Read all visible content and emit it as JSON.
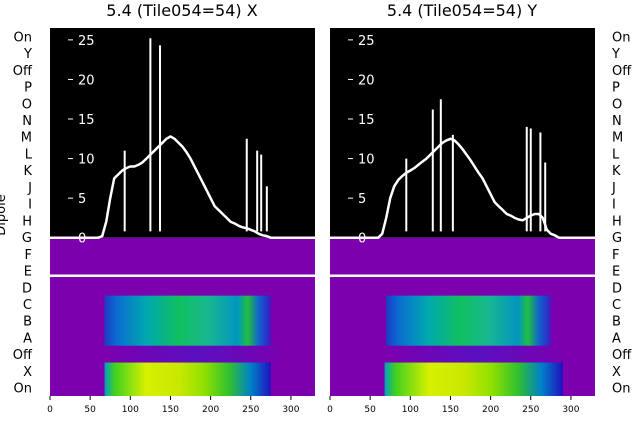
{
  "chart_data": [
    {
      "type": "line",
      "title": "5.4 (Tile054=54) X",
      "ylabel": "Dipole",
      "xlim": [
        0,
        330
      ],
      "ylim": [
        -20,
        26.5
      ],
      "x_ticks": [
        0,
        50,
        100,
        150,
        200,
        250,
        300
      ],
      "y_ticks": [
        0,
        5,
        10,
        15,
        20,
        25
      ],
      "row_labels": [
        "On",
        "Y",
        "Off",
        "P",
        "O",
        "N",
        "M",
        "L",
        "K",
        "J",
        "I",
        "H",
        "G",
        "F",
        "E",
        "D",
        "C",
        "B",
        "A",
        "Off",
        "X",
        "On"
      ],
      "series": [
        {
          "name": "",
          "color": "#ffffff",
          "x": [
            0,
            60,
            65,
            70,
            75,
            80,
            85,
            90,
            95,
            100,
            105,
            110,
            115,
            120,
            125,
            130,
            135,
            140,
            145,
            150,
            155,
            160,
            165,
            170,
            175,
            180,
            185,
            190,
            195,
            200,
            205,
            210,
            215,
            220,
            225,
            230,
            235,
            240,
            245,
            250,
            255,
            260,
            265,
            270,
            275,
            280,
            285,
            330
          ],
          "y": [
            0,
            0,
            0.2,
            2,
            5,
            7.5,
            8,
            8.5,
            8.8,
            9,
            9,
            9.2,
            9.5,
            10,
            10.5,
            11,
            11.5,
            12,
            12.5,
            12.8,
            12.5,
            12,
            11.5,
            10.8,
            10,
            9,
            8,
            7,
            6,
            5,
            4,
            3.5,
            3,
            2.5,
            2,
            1.8,
            1.5,
            1.3,
            1.2,
            1,
            0.8,
            0.5,
            0.3,
            0.2,
            0,
            0,
            0,
            0
          ]
        }
      ],
      "spikes": [
        {
          "x": 93,
          "y": 11
        },
        {
          "x": 125,
          "y": 25.2
        },
        {
          "x": 137,
          "y": 24.3
        },
        {
          "x": 245,
          "y": 12.5
        },
        {
          "x": 258,
          "y": 11
        },
        {
          "x": 263,
          "y": 10.5
        },
        {
          "x": 270,
          "y": 6.5
        }
      ],
      "hline": {
        "y": -4.8,
        "color": "#ffffff"
      },
      "heatmap_rows": [
        {
          "row_from": 16,
          "row_to": 19,
          "x_start": 68,
          "x_end": 275,
          "palette": "blue-green"
        },
        {
          "row_from": 19,
          "row_to": 20,
          "x_start": 75,
          "x_end": 290,
          "palette": "purple-band"
        },
        {
          "row_from": 20,
          "row_to": 22,
          "x_start": 68,
          "x_end": 275,
          "palette": "yellow-green"
        }
      ]
    },
    {
      "type": "line",
      "title": "5.4 (Tile054=54) Y",
      "xlim": [
        0,
        330
      ],
      "ylim": [
        -20,
        26.5
      ],
      "x_ticks": [
        0,
        50,
        100,
        150,
        200,
        250,
        300
      ],
      "y_ticks": [
        0,
        5,
        10,
        15,
        20,
        25
      ],
      "row_labels": [
        "On",
        "Y",
        "Off",
        "P",
        "O",
        "N",
        "M",
        "L",
        "K",
        "J",
        "I",
        "H",
        "G",
        "F",
        "E",
        "D",
        "C",
        "B",
        "A",
        "Off",
        "X",
        "On"
      ],
      "series": [
        {
          "name": "",
          "color": "#ffffff",
          "x": [
            0,
            60,
            65,
            70,
            75,
            80,
            85,
            90,
            95,
            100,
            105,
            110,
            115,
            120,
            125,
            130,
            135,
            140,
            145,
            150,
            155,
            160,
            165,
            170,
            175,
            180,
            185,
            190,
            195,
            200,
            205,
            210,
            215,
            220,
            225,
            230,
            235,
            240,
            245,
            250,
            255,
            260,
            265,
            270,
            275,
            280,
            285,
            330
          ],
          "y": [
            0,
            0,
            0.5,
            2.5,
            5,
            6.5,
            7.3,
            7.8,
            8.2,
            8.5,
            8.8,
            9.2,
            9.6,
            10,
            10.5,
            11,
            11.5,
            12,
            12.3,
            12.5,
            12.3,
            11.8,
            11.2,
            10.5,
            9.8,
            9,
            8.2,
            7.5,
            6.5,
            5.5,
            4.5,
            4,
            3.5,
            3,
            2.8,
            2.5,
            2.3,
            2.2,
            2.5,
            2.8,
            3,
            3,
            2.5,
            1,
            0.5,
            0.3,
            0,
            0
          ]
        }
      ],
      "spikes": [
        {
          "x": 95,
          "y": 10
        },
        {
          "x": 128,
          "y": 16.2
        },
        {
          "x": 138,
          "y": 17.5
        },
        {
          "x": 153,
          "y": 13
        },
        {
          "x": 245,
          "y": 14
        },
        {
          "x": 250,
          "y": 13.8
        },
        {
          "x": 262,
          "y": 13.3
        },
        {
          "x": 268,
          "y": 9.5
        }
      ],
      "hline": {
        "y": -4.8,
        "color": "#ffffff"
      },
      "heatmap_rows": [
        {
          "row_from": 16,
          "row_to": 19,
          "x_start": 70,
          "x_end": 275,
          "palette": "blue-green"
        },
        {
          "row_from": 19,
          "row_to": 20,
          "x_start": 75,
          "x_end": 290,
          "palette": "purple-band"
        },
        {
          "row_from": 20,
          "row_to": 22,
          "x_start": 68,
          "x_end": 290,
          "palette": "yellow-green"
        }
      ]
    }
  ]
}
